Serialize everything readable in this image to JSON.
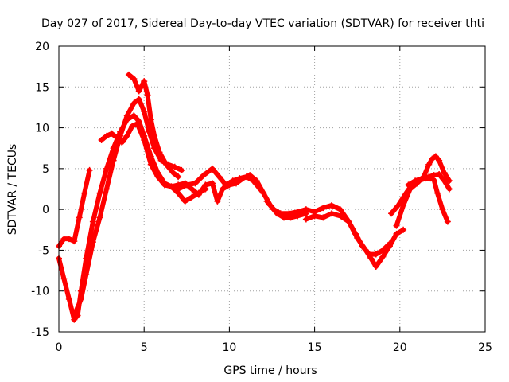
{
  "chart_data": {
    "type": "scatter",
    "title": "Day 027 of 2017, Sidereal Day-to-day VTEC variation (SDTVAR) for receiver thti",
    "xlabel": "GPS time / hours",
    "ylabel": "SDTVAR / TECUs",
    "xlim": [
      0,
      25
    ],
    "ylim": [
      -15,
      20
    ],
    "xticks": [
      "0",
      "5",
      "10",
      "15",
      "20",
      "25"
    ],
    "yticks": [
      "-15",
      "-10",
      "-5",
      "0",
      "5",
      "10",
      "15",
      "20"
    ],
    "grid": true,
    "marker": "plus",
    "color": "#ff0000",
    "series": [
      {
        "name": "trace-a",
        "x": [
          0.0,
          0.3,
          0.6,
          0.9,
          1.2,
          1.5,
          1.8
        ],
        "y": [
          -4.5,
          -3.6,
          -3.6,
          -3.9,
          -1.0,
          2.0,
          4.8
        ]
      },
      {
        "name": "trace-b",
        "x": [
          0.0,
          0.3,
          0.6,
          0.9,
          1.1,
          1.3,
          1.6,
          2.0,
          2.4,
          2.8,
          3.2,
          3.6,
          4.0,
          4.4,
          4.7,
          5.0,
          5.4,
          5.8,
          6.2,
          6.6,
          7.0,
          7.4,
          7.8
        ],
        "y": [
          -6.0,
          -8.5,
          -11.0,
          -13.5,
          -13.0,
          -10.0,
          -6.0,
          -1.5,
          2.0,
          5.0,
          7.5,
          9.5,
          11.0,
          11.5,
          10.8,
          9.0,
          6.5,
          4.5,
          3.2,
          2.8,
          3.0,
          3.2,
          2.5
        ]
      },
      {
        "name": "trace-c",
        "x": [
          1.0,
          1.3,
          1.6,
          2.0,
          2.4,
          2.8,
          3.2,
          3.6,
          4.0,
          4.4,
          4.7,
          5.0,
          5.3,
          5.6,
          6.0,
          6.4,
          6.8,
          7.2
        ],
        "y": [
          -12.5,
          -11.0,
          -8.0,
          -4.0,
          -1.0,
          2.5,
          6.0,
          9.0,
          11.5,
          13.0,
          13.5,
          12.0,
          9.5,
          7.5,
          6.0,
          5.5,
          5.2,
          4.8
        ]
      },
      {
        "name": "trace-d",
        "x": [
          2.5,
          2.8,
          3.1,
          3.4,
          3.7,
          4.0,
          4.3,
          4.6,
          5.0,
          5.4,
          5.8,
          6.2,
          6.6,
          7.0,
          7.4,
          7.8,
          8.2,
          8.6
        ],
        "y": [
          8.5,
          9.0,
          9.3,
          8.8,
          8.2,
          9.0,
          10.2,
          10.5,
          8.5,
          5.5,
          4.0,
          3.0,
          2.8,
          2.0,
          1.0,
          1.5,
          2.0,
          2.5
        ]
      },
      {
        "name": "trace-e",
        "x": [
          4.1,
          4.4,
          4.7,
          5.0,
          5.2,
          5.4,
          5.6,
          5.9,
          6.3,
          6.7,
          7.0
        ],
        "y": [
          16.5,
          16.0,
          14.5,
          15.7,
          14.0,
          11.0,
          9.0,
          7.0,
          5.5,
          4.5,
          4.0
        ]
      },
      {
        "name": "trace-f",
        "x": [
          7.0,
          7.5,
          8.0,
          8.5,
          9.0,
          9.4,
          9.8,
          10.2,
          10.6,
          11.0,
          11.4,
          11.8,
          12.0
        ],
        "y": [
          2.5,
          3.0,
          3.2,
          4.2,
          5.0,
          4.0,
          3.0,
          3.5,
          3.8,
          4.0,
          3.5,
          2.5,
          2.0
        ]
      },
      {
        "name": "trace-g",
        "x": [
          7.8,
          8.2,
          8.6,
          9.0,
          9.3,
          9.6,
          10.0,
          10.4,
          10.8,
          11.2,
          11.6,
          12.0,
          12.4,
          12.8,
          13.2,
          13.6,
          14.0,
          14.5
        ],
        "y": [
          2.5,
          1.8,
          3.0,
          3.2,
          1.0,
          2.5,
          3.0,
          3.2,
          3.8,
          4.2,
          3.5,
          2.0,
          0.5,
          -0.5,
          -1.0,
          -1.0,
          -0.8,
          -0.5
        ]
      },
      {
        "name": "trace-h",
        "x": [
          12.2,
          12.6,
          13.0,
          13.5,
          14.0,
          14.5,
          15.0,
          15.5,
          16.0,
          16.5,
          17.0,
          17.4,
          17.8,
          18.2,
          18.6,
          19.0,
          19.4
        ],
        "y": [
          1.0,
          0.0,
          -0.5,
          -0.5,
          -0.3,
          0.0,
          -0.3,
          0.2,
          0.5,
          0.0,
          -1.5,
          -3.0,
          -4.5,
          -5.5,
          -5.5,
          -5.0,
          -4.2
        ]
      },
      {
        "name": "trace-i",
        "x": [
          14.5,
          15.0,
          15.5,
          16.0,
          16.5,
          17.0,
          17.5,
          18.0,
          18.3,
          18.6,
          19.0,
          19.4,
          19.8,
          20.2
        ],
        "y": [
          -1.2,
          -0.8,
          -1.0,
          -0.5,
          -0.8,
          -1.5,
          -3.5,
          -5.0,
          -6.0,
          -7.0,
          -5.8,
          -4.5,
          -3.0,
          -2.5
        ]
      },
      {
        "name": "trace-j",
        "x": [
          19.5,
          19.9,
          20.3,
          20.7,
          21.1,
          21.5,
          21.8,
          22.0,
          22.2,
          22.5,
          22.8
        ],
        "y": [
          -0.5,
          0.5,
          1.8,
          3.0,
          3.5,
          3.8,
          3.8,
          3.6,
          2.0,
          0.0,
          -1.5
        ]
      },
      {
        "name": "trace-k",
        "x": [
          19.8,
          20.2,
          20.6,
          21.0,
          21.4,
          21.7,
          21.9,
          22.1,
          22.3,
          22.6,
          22.9
        ],
        "y": [
          -2.0,
          0.5,
          2.5,
          3.2,
          4.0,
          5.5,
          6.2,
          6.5,
          6.0,
          4.5,
          3.5
        ]
      },
      {
        "name": "trace-l",
        "x": [
          20.5,
          20.9,
          21.3,
          21.7,
          22.0,
          22.3,
          22.6,
          22.9
        ],
        "y": [
          3.0,
          3.5,
          3.8,
          4.0,
          4.2,
          4.3,
          3.5,
          2.5
        ]
      }
    ]
  }
}
